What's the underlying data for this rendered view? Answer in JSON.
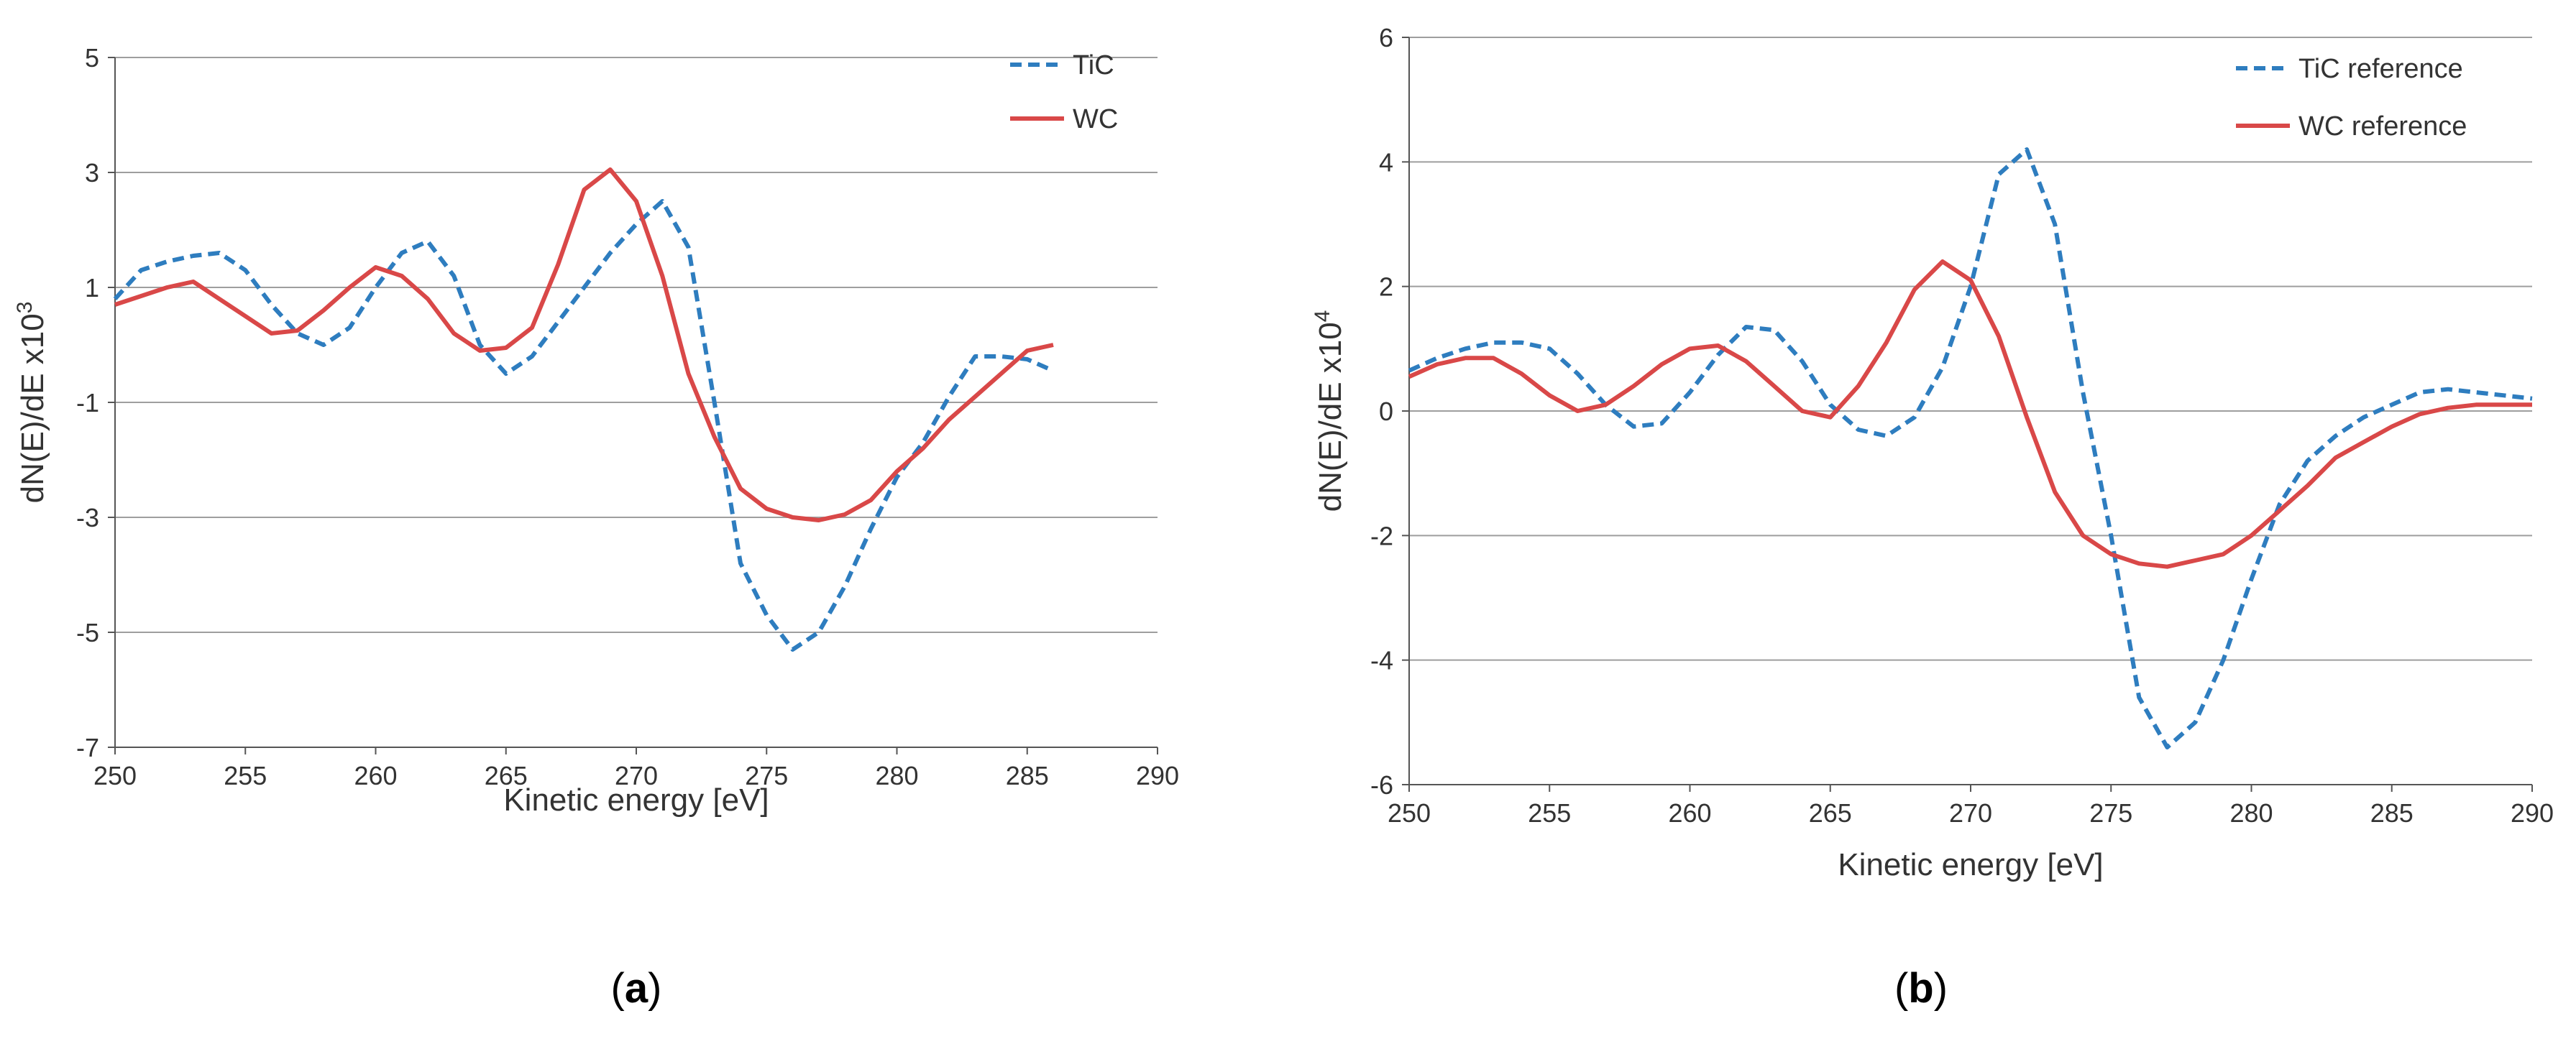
{
  "chart_data": [
    {
      "type": "line",
      "panel_label": "a",
      "xlabel": "Kinetic energy [eV]",
      "ylabel": "dN(E)/dE x10",
      "ylabel_exponent": "3",
      "xlim": [
        250,
        290
      ],
      "ylim": [
        -7,
        5
      ],
      "xticks": [
        250,
        255,
        260,
        265,
        270,
        275,
        280,
        285,
        290
      ],
      "yticks": [
        -7,
        -5,
        -3,
        -1,
        1,
        3,
        5
      ],
      "grid": true,
      "legend_position": "top-right",
      "series": [
        {
          "name": "TiC",
          "style": "dashed",
          "color": "#2e7dbf",
          "x": [
            250,
            251,
            252,
            253,
            254,
            255,
            256,
            257,
            258,
            259,
            260,
            261,
            262,
            263,
            264,
            265,
            266,
            267,
            268,
            269,
            270,
            271,
            272,
            273,
            274,
            275,
            276,
            277,
            278,
            279,
            280,
            281,
            282,
            283,
            284,
            285,
            286
          ],
          "y": [
            0.8,
            1.3,
            1.45,
            1.55,
            1.6,
            1.3,
            0.7,
            0.2,
            0.0,
            0.3,
            1.0,
            1.6,
            1.8,
            1.2,
            0.0,
            -0.5,
            -0.2,
            0.4,
            1.0,
            1.6,
            2.1,
            2.5,
            1.7,
            -1.0,
            -3.8,
            -4.7,
            -5.3,
            -5.0,
            -4.2,
            -3.2,
            -2.3,
            -1.7,
            -0.9,
            -0.2,
            -0.2,
            -0.25,
            -0.45
          ]
        },
        {
          "name": "WC",
          "style": "solid",
          "color": "#d94848",
          "x": [
            250,
            251,
            252,
            253,
            254,
            255,
            256,
            257,
            258,
            259,
            260,
            261,
            262,
            263,
            264,
            265,
            266,
            267,
            268,
            269,
            270,
            271,
            272,
            273,
            274,
            275,
            276,
            277,
            278,
            279,
            280,
            281,
            282,
            283,
            284,
            285,
            286
          ],
          "y": [
            0.7,
            0.85,
            1.0,
            1.1,
            0.8,
            0.5,
            0.2,
            0.25,
            0.6,
            1.0,
            1.35,
            1.2,
            0.8,
            0.2,
            -0.1,
            -0.05,
            0.3,
            1.4,
            2.7,
            3.05,
            2.5,
            1.2,
            -0.5,
            -1.6,
            -2.5,
            -2.85,
            -3.0,
            -3.05,
            -2.95,
            -2.7,
            -2.2,
            -1.8,
            -1.3,
            -0.9,
            -0.5,
            -0.1,
            0.0
          ]
        }
      ]
    },
    {
      "type": "line",
      "panel_label": "b",
      "xlabel": "Kinetic energy [eV]",
      "ylabel": "dN(E)/dE x10",
      "ylabel_exponent": "4",
      "xlim": [
        250,
        290
      ],
      "ylim": [
        -6,
        6
      ],
      "xticks": [
        250,
        255,
        260,
        265,
        270,
        275,
        280,
        285,
        290
      ],
      "yticks": [
        -6,
        -4,
        -2,
        0,
        2,
        4,
        6
      ],
      "grid": true,
      "legend_position": "top-right",
      "series": [
        {
          "name": "TiC reference",
          "style": "dashed",
          "color": "#2e7dbf",
          "x": [
            250,
            251,
            252,
            253,
            254,
            255,
            256,
            257,
            258,
            259,
            260,
            261,
            262,
            263,
            264,
            265,
            266,
            267,
            268,
            269,
            270,
            271,
            272,
            273,
            274,
            275,
            276,
            277,
            278,
            279,
            280,
            281,
            282,
            283,
            284,
            285,
            286,
            287,
            288,
            289,
            290
          ],
          "y": [
            0.65,
            0.85,
            1.0,
            1.1,
            1.1,
            1.0,
            0.6,
            0.1,
            -0.25,
            -0.2,
            0.3,
            0.9,
            1.35,
            1.3,
            0.8,
            0.1,
            -0.3,
            -0.4,
            -0.1,
            0.7,
            2.0,
            3.8,
            4.2,
            3.0,
            0.3,
            -2.0,
            -4.6,
            -5.4,
            -5.0,
            -4.0,
            -2.7,
            -1.5,
            -0.8,
            -0.4,
            -0.1,
            0.1,
            0.3,
            0.35,
            0.3,
            0.25,
            0.2
          ]
        },
        {
          "name": "WC reference",
          "style": "solid",
          "color": "#d94848",
          "x": [
            250,
            251,
            252,
            253,
            254,
            255,
            256,
            257,
            258,
            259,
            260,
            261,
            262,
            263,
            264,
            265,
            266,
            267,
            268,
            269,
            270,
            271,
            272,
            273,
            274,
            275,
            276,
            277,
            278,
            279,
            280,
            281,
            282,
            283,
            284,
            285,
            286,
            287,
            288,
            289,
            290
          ],
          "y": [
            0.55,
            0.75,
            0.85,
            0.85,
            0.6,
            0.25,
            0.0,
            0.1,
            0.4,
            0.75,
            1.0,
            1.05,
            0.8,
            0.4,
            0.0,
            -0.1,
            0.4,
            1.1,
            1.95,
            2.4,
            2.1,
            1.2,
            -0.1,
            -1.3,
            -2.0,
            -2.3,
            -2.45,
            -2.5,
            -2.4,
            -2.3,
            -2.0,
            -1.6,
            -1.2,
            -0.75,
            -0.5,
            -0.25,
            -0.05,
            0.05,
            0.1,
            0.1,
            0.1
          ]
        }
      ]
    }
  ]
}
